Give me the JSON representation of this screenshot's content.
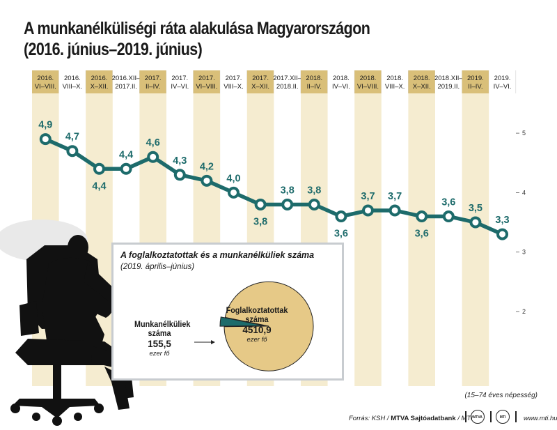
{
  "title": {
    "line1": "A munkanélküliségi ráta alakulása Magyarországon",
    "line2": "(2016. június–2019. június)"
  },
  "colors": {
    "line": "#1d6b6b",
    "header_gold": "#d9bf79",
    "band_light": "#f5ecd0",
    "pie_main": "#e6c987",
    "pie_slice": "#1d6b6b",
    "silhouette": "#111111"
  },
  "chart_data": [
    {
      "type": "line",
      "title": "A munkanélküliségi ráta alakulása Magyarországon",
      "categories": [
        [
          "2016.",
          "VI–VIII."
        ],
        [
          "2016.",
          "VIII–X."
        ],
        [
          "2016.",
          "X–XII."
        ],
        [
          "2016.XII–",
          "2017.II."
        ],
        [
          "2017.",
          "II–IV."
        ],
        [
          "2017.",
          "IV–VI."
        ],
        [
          "2017.",
          "VI–VIII."
        ],
        [
          "2017.",
          "VIII–X."
        ],
        [
          "2017.",
          "X–XII."
        ],
        [
          "2017.XII–",
          "2018.II."
        ],
        [
          "2018.",
          "II–IV."
        ],
        [
          "2018.",
          "IV–VI."
        ],
        [
          "2018.",
          "VI–VIII."
        ],
        [
          "2018.",
          "VIII–X."
        ],
        [
          "2018.",
          "X–XII."
        ],
        [
          "2018.XII–",
          "2019.II."
        ],
        [
          "2019.",
          "II–IV."
        ],
        [
          "2019.",
          "IV–VI."
        ]
      ],
      "values": [
        4.9,
        4.7,
        4.4,
        4.4,
        4.6,
        4.3,
        4.2,
        4.0,
        3.8,
        3.8,
        3.8,
        3.6,
        3.7,
        3.7,
        3.6,
        3.6,
        3.5,
        3.3
      ],
      "value_labels": [
        "4,9",
        "4,7",
        "4,4",
        "4,4",
        "4,6",
        "4,3",
        "4,2",
        "4,0",
        "3,8",
        "3,8",
        "3,8",
        "3,6",
        "3,7",
        "3,7",
        "3,6",
        "3,6",
        "3,5",
        "3,3"
      ],
      "y_ticks": [
        2,
        3,
        4,
        5
      ],
      "ylim": [
        2,
        5.6
      ],
      "grid": false
    },
    {
      "type": "pie",
      "title": "A foglalkoztatottak és a munkanélküliek száma",
      "subtitle": "(2019. április–június)",
      "slices": [
        {
          "label": "Foglalkoztatottak száma",
          "value": 4510.9,
          "display": "4510,9",
          "unit": "ezer fő"
        },
        {
          "label": "Munkanélküliek száma",
          "value": 155.5,
          "display": "155,5",
          "unit": "ezer fő"
        }
      ]
    }
  ],
  "footnote": "(15–74 éves népesség)",
  "source": {
    "prefix": "Forrás: KSH / ",
    "bold": "MTVA Sajtóadatbank",
    "suffix": " / MTI"
  },
  "logos": {
    "mtva": "MTVA",
    "mti": "MTI"
  },
  "url": "www.mti.hu"
}
